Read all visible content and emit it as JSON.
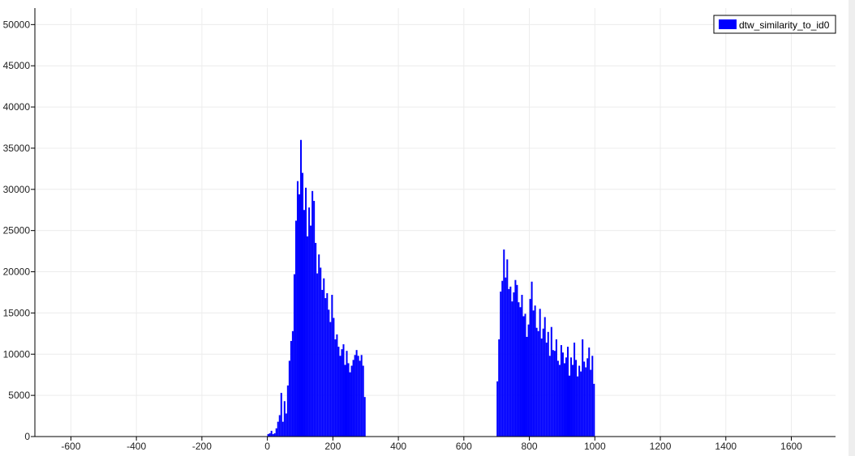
{
  "chart_data": {
    "type": "bar",
    "title": "",
    "xlabel": "",
    "ylabel": "",
    "xlim": [
      -710,
      1735
    ],
    "ylim": [
      0,
      52000
    ],
    "x_ticks": [
      -600,
      -400,
      -200,
      0,
      200,
      400,
      600,
      800,
      1000,
      1200,
      1400,
      1600
    ],
    "y_ticks": [
      0,
      5000,
      10000,
      15000,
      20000,
      25000,
      30000,
      35000,
      40000,
      45000,
      50000
    ],
    "grid": true,
    "legend_position": "top-right",
    "bin_width": 5,
    "series": [
      {
        "name": "dtw_similarity_to_id0",
        "color": "#0000ff",
        "x": [
          0,
          5,
          10,
          15,
          20,
          25,
          30,
          35,
          40,
          45,
          50,
          55,
          60,
          65,
          70,
          75,
          80,
          85,
          90,
          95,
          100,
          105,
          110,
          115,
          120,
          125,
          130,
          135,
          140,
          145,
          150,
          155,
          160,
          165,
          170,
          175,
          180,
          185,
          190,
          195,
          200,
          205,
          210,
          215,
          220,
          225,
          230,
          235,
          240,
          245,
          250,
          255,
          260,
          265,
          270,
          275,
          280,
          285,
          290,
          295,
          700,
          705,
          710,
          715,
          720,
          725,
          730,
          735,
          740,
          745,
          750,
          755,
          760,
          765,
          770,
          775,
          780,
          785,
          790,
          795,
          800,
          805,
          810,
          815,
          820,
          825,
          830,
          835,
          840,
          845,
          850,
          855,
          860,
          865,
          870,
          875,
          880,
          885,
          890,
          895,
          900,
          905,
          910,
          915,
          920,
          925,
          930,
          935,
          940,
          945,
          950,
          955,
          960,
          965,
          970,
          975,
          980,
          985,
          990,
          995
        ],
        "values": [
          300,
          400,
          700,
          300,
          400,
          1000,
          1800,
          2600,
          5300,
          1800,
          4300,
          2800,
          6200,
          9200,
          11600,
          12800,
          19700,
          26200,
          31000,
          29400,
          36000,
          32000,
          27500,
          30200,
          24300,
          27800,
          25600,
          29800,
          28600,
          23500,
          19800,
          22100,
          20500,
          17800,
          19200,
          16800,
          17400,
          15400,
          13900,
          17200,
          14400,
          11800,
          12400,
          10900,
          9800,
          10600,
          11200,
          8700,
          10400,
          8900,
          7800,
          8600,
          9300,
          9900,
          10500,
          9800,
          9200,
          9900,
          8600,
          4800,
          6700,
          11800,
          17600,
          18900,
          22700,
          19300,
          21500,
          17900,
          18200,
          16400,
          17500,
          19000,
          18400,
          16300,
          15700,
          17200,
          14600,
          14900,
          12100,
          13600,
          16700,
          18800,
          15300,
          15900,
          13200,
          12800,
          15500,
          11900,
          13100,
          14500,
          11400,
          12700,
          9800,
          13300,
          10500,
          10400,
          11800,
          9200,
          8700,
          11100,
          10200,
          8900,
          9600,
          10900,
          7400,
          9600,
          8700,
          11400,
          9300,
          7300,
          8600,
          7900,
          11800,
          9100,
          8400,
          9500,
          10800,
          8100,
          9800,
          6400
        ]
      }
    ]
  }
}
